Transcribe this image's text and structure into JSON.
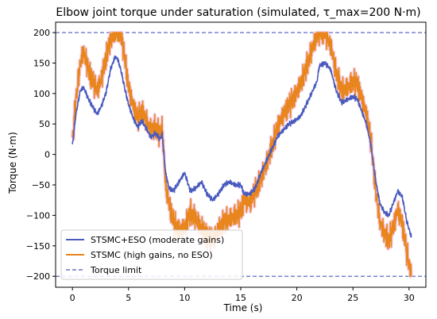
{
  "chart_data": {
    "type": "line",
    "title": "Elbow joint torque under saturation (simulated, τ_max=200 N·m)",
    "xlabel": "Time (s)",
    "ylabel": "Torque (N·m)",
    "xlim": [
      -1.5,
      31.5
    ],
    "ylim": [
      -218,
      217
    ],
    "x_ticks": [
      0,
      5,
      10,
      15,
      20,
      25,
      30
    ],
    "y_ticks": [
      -200,
      -150,
      -100,
      -50,
      0,
      50,
      100,
      150,
      200
    ],
    "grid": false,
    "legend_position": "lower-left",
    "tau_max": 200,
    "series": [
      {
        "name": "STSMC+ESO (moderate gains)",
        "color": "#4a5bbf",
        "width": 1.6,
        "chatter": 5,
        "x": [
          0,
          0.3,
          0.7,
          1,
          1.4,
          1.8,
          2.2,
          2.6,
          3,
          3.4,
          3.8,
          4,
          4.3,
          4.7,
          5,
          5.4,
          5.8,
          6.2,
          6.6,
          7,
          7.4,
          7.8,
          8,
          8.3,
          8.6,
          9,
          9.5,
          10,
          10.5,
          11,
          11.5,
          12,
          12.5,
          13,
          13.5,
          14,
          14.5,
          15,
          15.3,
          15.8,
          16.3,
          16.8,
          17.3,
          17.8,
          18.3,
          18.8,
          19.3,
          19.8,
          20.3,
          20.8,
          21.3,
          21.8,
          22,
          22.5,
          23,
          23.5,
          24,
          24.5,
          25,
          25.4,
          25.8,
          26.2,
          26.6,
          27,
          27.4,
          27.8,
          28.2,
          28.6,
          29,
          29.4,
          29.8,
          30.2
        ],
        "y": [
          15,
          65,
          105,
          110,
          92,
          78,
          66,
          80,
          102,
          140,
          160,
          158,
          140,
          105,
          82,
          60,
          45,
          55,
          42,
          28,
          35,
          25,
          33,
          -30,
          -55,
          -60,
          -45,
          -30,
          -60,
          -55,
          -45,
          -65,
          -75,
          -65,
          -50,
          -45,
          -50,
          -50,
          -65,
          -65,
          -55,
          -30,
          -10,
          10,
          30,
          40,
          50,
          55,
          62,
          80,
          100,
          120,
          145,
          150,
          140,
          105,
          85,
          90,
          95,
          90,
          70,
          50,
          15,
          -40,
          -80,
          -95,
          -100,
          -80,
          -60,
          -70,
          -110,
          -135
        ]
      },
      {
        "name": "STSMC (high gains, no ESO)",
        "color": "#e8851c",
        "shadow": "#f4c9e4",
        "width": 1.6,
        "chatter": 24,
        "x": [
          0,
          0.3,
          0.7,
          1,
          1.4,
          1.8,
          2.2,
          2.6,
          3,
          3.4,
          3.8,
          4,
          4.3,
          4.7,
          5,
          5.4,
          5.8,
          6.2,
          6.6,
          7,
          7.4,
          7.8,
          8,
          8.3,
          8.6,
          9,
          9.5,
          10,
          10.5,
          11,
          11.5,
          12,
          12.5,
          13,
          13.5,
          14,
          14.5,
          15,
          15.3,
          15.8,
          16.3,
          16.8,
          17.3,
          17.8,
          18.3,
          18.8,
          19.3,
          19.8,
          20.3,
          20.8,
          21.3,
          21.8,
          22,
          22.5,
          23,
          23.5,
          24,
          24.5,
          25,
          25.4,
          25.8,
          26.2,
          26.6,
          27,
          27.4,
          27.8,
          28.2,
          28.6,
          29,
          29.4,
          29.8,
          30.2
        ],
        "y": [
          20,
          90,
          150,
          170,
          140,
          120,
          105,
          125,
          160,
          190,
          200,
          200,
          200,
          155,
          110,
          80,
          60,
          70,
          55,
          40,
          45,
          32,
          45,
          -50,
          -80,
          -110,
          -125,
          -120,
          -95,
          -105,
          -120,
          -135,
          -140,
          -125,
          -110,
          -105,
          -100,
          -95,
          -75,
          -80,
          -60,
          -40,
          -15,
          15,
          45,
          65,
          80,
          95,
          115,
          140,
          170,
          195,
          200,
          200,
          180,
          135,
          105,
          110,
          120,
          115,
          90,
          65,
          25,
          -55,
          -110,
          -130,
          -140,
          -120,
          -90,
          -115,
          -160,
          -200
        ]
      },
      {
        "name": "Torque limit",
        "color": "#4a5bbf",
        "dash": true,
        "values": [
          200,
          -200
        ]
      }
    ]
  }
}
